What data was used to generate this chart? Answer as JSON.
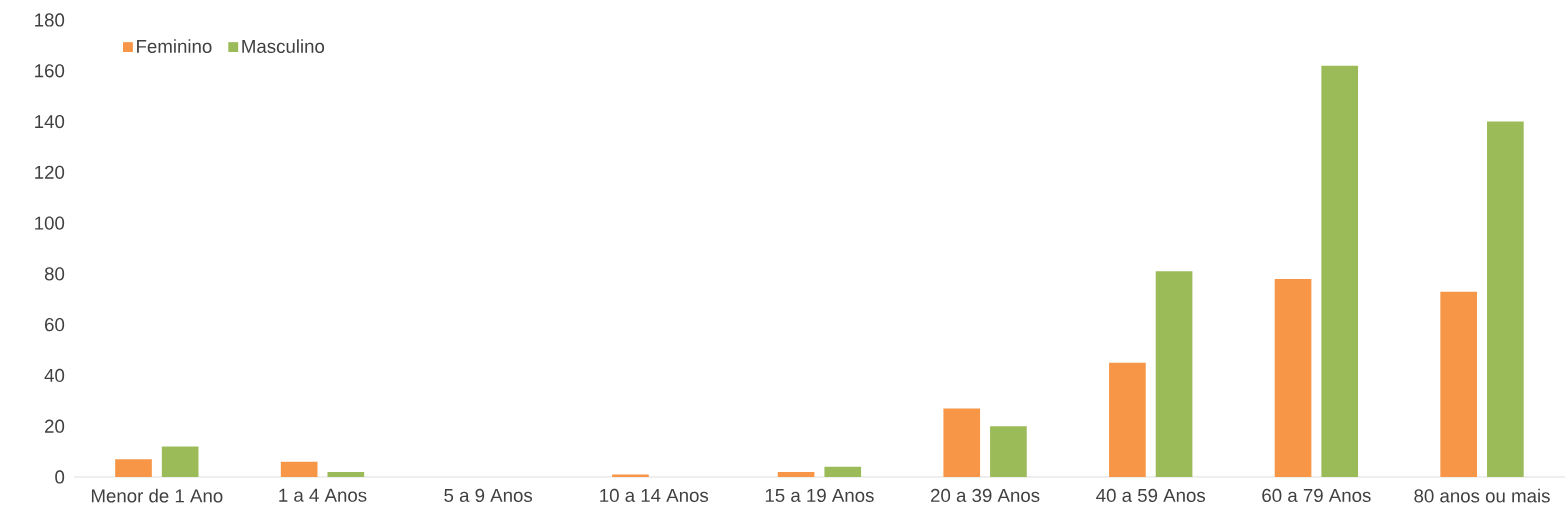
{
  "chart_data": {
    "type": "bar",
    "categories": [
      "Menor de 1 Ano",
      "1 a 4 Anos",
      "5 a 9 Anos",
      "10 a 14 Anos",
      "15 a 19 Anos",
      "20 a 39 Anos",
      "40 a 59 Anos",
      "60 a 79 Anos",
      "80 anos ou mais"
    ],
    "series": [
      {
        "name": "Feminino",
        "color": "#f79646",
        "values": [
          7,
          6,
          0,
          1,
          2,
          27,
          45,
          78,
          73
        ]
      },
      {
        "name": "Masculino",
        "color": "#9bbb59",
        "values": [
          12,
          2,
          0,
          0,
          4,
          20,
          81,
          162,
          140
        ]
      }
    ],
    "ylim": [
      0,
      180
    ],
    "yticks": [
      0,
      20,
      40,
      60,
      80,
      100,
      120,
      140,
      160,
      180
    ],
    "legend": "top left"
  }
}
